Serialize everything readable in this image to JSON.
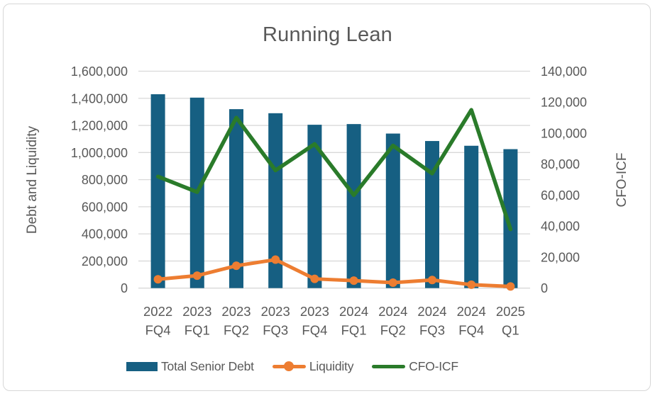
{
  "chart_data": {
    "type": "combo",
    "title": "Running Lean",
    "categories": [
      "2022 FQ4",
      "2023 FQ1",
      "2023 FQ2",
      "2023 FQ3",
      "2023 FQ4",
      "2024 FQ1",
      "2024 FQ2",
      "2024 FQ3",
      "2024 FQ4",
      "2025 Q1"
    ],
    "category_label_lines": [
      [
        "2022",
        "FQ4"
      ],
      [
        "2023",
        "FQ1"
      ],
      [
        "2023",
        "FQ2"
      ],
      [
        "2023",
        "FQ3"
      ],
      [
        "2023",
        "FQ4"
      ],
      [
        "2024",
        "FQ1"
      ],
      [
        "2024",
        "FQ2"
      ],
      [
        "2024",
        "FQ3"
      ],
      [
        "2024",
        "FQ4"
      ],
      [
        "2025",
        "Q1"
      ]
    ],
    "series": [
      {
        "name": "Total Senior Debt",
        "type": "bar",
        "axis": "left",
        "color": "#165F82",
        "values": [
          1430000,
          1405000,
          1320000,
          1290000,
          1205000,
          1210000,
          1140000,
          1085000,
          1050000,
          1025000
        ]
      },
      {
        "name": "Liquidity",
        "type": "line",
        "marker": "circle",
        "axis": "left",
        "color": "#ED7D31",
        "values": [
          65000,
          92000,
          165000,
          210000,
          68000,
          55000,
          40000,
          60000,
          25000,
          12000
        ]
      },
      {
        "name": "CFO-ICF",
        "type": "line",
        "marker": "none",
        "axis": "right",
        "color": "#2A7B2A",
        "values": [
          72000,
          62000,
          110000,
          76000,
          93000,
          60000,
          92000,
          74000,
          115000,
          38000
        ]
      }
    ],
    "left_axis": {
      "title": "Debt and Liquidity",
      "min": 0,
      "max": 1600000,
      "step": 200000,
      "tick_labels": [
        "0",
        "200,000",
        "400,000",
        "600,000",
        "800,000",
        "1,000,000",
        "1,200,000",
        "1,400,000",
        "1,600,000"
      ]
    },
    "right_axis": {
      "title": "CFO-ICF",
      "min": 0,
      "max": 140000,
      "step": 20000,
      "tick_labels": [
        "0",
        "20,000",
        "40,000",
        "60,000",
        "80,000",
        "100,000",
        "120,000",
        "140,000"
      ]
    },
    "grid": true,
    "legend_position": "bottom",
    "text_color": "#595959",
    "gridline_color": "#D9D9D9"
  }
}
